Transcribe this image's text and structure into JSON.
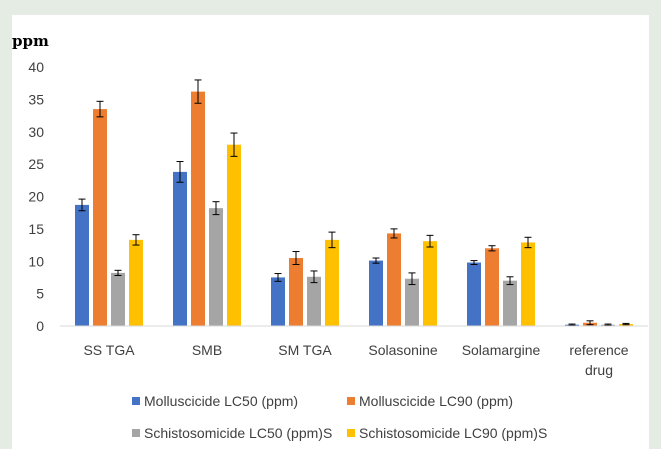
{
  "chart_data": {
    "type": "bar",
    "ylabel": "ppm",
    "ylim": [
      0,
      40
    ],
    "yticks": [
      0,
      5,
      10,
      15,
      20,
      25,
      30,
      35,
      40
    ],
    "categories": [
      [
        "SS TGA"
      ],
      [
        "SMB"
      ],
      [
        "SM TGA"
      ],
      [
        "Solasonine"
      ],
      [
        "Solamargine"
      ],
      [
        "reference",
        "drug"
      ]
    ],
    "series": [
      {
        "name": "Molluscicide LC50 (ppm)",
        "color": "#4472c4",
        "values": [
          18.7,
          23.8,
          7.5,
          10.1,
          9.8,
          0.2
        ],
        "errors": [
          0.9,
          1.6,
          0.6,
          0.4,
          0.3,
          0.1
        ]
      },
      {
        "name": "Molluscicide LC90 (ppm)",
        "color": "#ed7d31",
        "values": [
          33.5,
          36.2,
          10.5,
          14.3,
          12.0,
          0.5
        ],
        "errors": [
          1.2,
          1.8,
          1.0,
          0.7,
          0.4,
          0.3
        ]
      },
      {
        "name": "Schistosomicide LC50 (ppm)S",
        "color": "#a5a5a5",
        "values": [
          8.2,
          18.2,
          7.6,
          7.3,
          7.0,
          0.2
        ],
        "errors": [
          0.4,
          1.0,
          0.9,
          0.9,
          0.6,
          0.1
        ]
      },
      {
        "name": "Schistosomicide LC90 (ppm)S",
        "color": "#ffc000",
        "values": [
          13.3,
          28.0,
          13.3,
          13.1,
          12.9,
          0.3
        ],
        "errors": [
          0.8,
          1.8,
          1.2,
          0.9,
          0.8,
          0.1
        ]
      }
    ],
    "grid": false,
    "legend": "bottom"
  }
}
